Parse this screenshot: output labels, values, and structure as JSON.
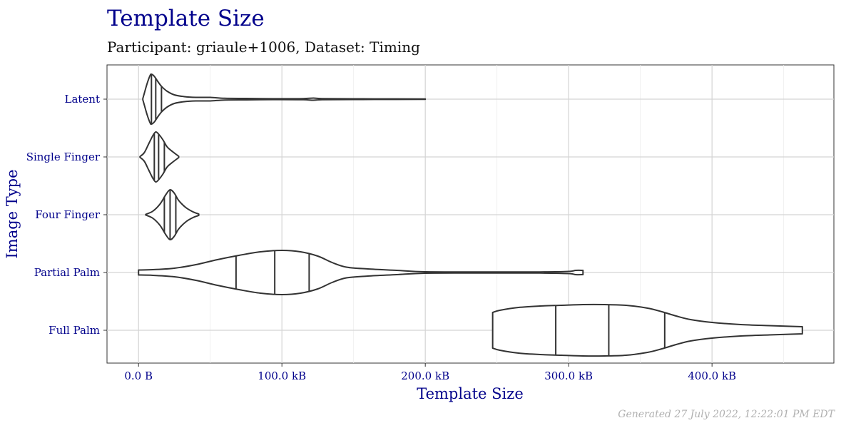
{
  "chart_data": {
    "type": "violin",
    "title": "Template Size",
    "subtitle": "Participant: griaule+1006, Dataset: Timing",
    "xlabel": "Template Size",
    "ylabel": "Image Type",
    "caption": "Generated 27 July 2022, 12:22:01 PM EDT",
    "xlim": [
      -22,
      485
    ],
    "grid": true,
    "x_ticks": [
      {
        "value": 0,
        "label": "0.0 B"
      },
      {
        "value": 100,
        "label": "100.0 kB"
      },
      {
        "value": 200,
        "label": "200.0 kB"
      },
      {
        "value": 300,
        "label": "300.0 kB"
      },
      {
        "value": 400,
        "label": "400.0 kB"
      }
    ],
    "categories": [
      "Latent",
      "Single Finger",
      "Four Finger",
      "Partial Palm",
      "Full Palm"
    ],
    "series": [
      {
        "category": "Latent",
        "quartiles": [
          9,
          12,
          16
        ],
        "profile": [
          [
            3,
            1
          ],
          [
            4,
            8
          ],
          [
            6,
            22
          ],
          [
            8,
            33
          ],
          [
            9,
            35
          ],
          [
            11,
            32
          ],
          [
            13,
            26
          ],
          [
            16,
            18
          ],
          [
            20,
            11
          ],
          [
            25,
            6
          ],
          [
            32,
            3.5
          ],
          [
            40,
            2.5
          ],
          [
            50,
            2.5
          ],
          [
            60,
            1.2
          ],
          [
            75,
            1.0
          ],
          [
            85,
            0.8
          ],
          [
            100,
            0.6
          ],
          [
            115,
            0.8
          ],
          [
            122,
            1.5
          ],
          [
            128,
            0.8
          ],
          [
            150,
            0.5
          ],
          [
            180,
            0.4
          ],
          [
            200,
            0.3
          ]
        ]
      },
      {
        "category": "Single Finger",
        "quartiles": [
          11,
          14,
          18
        ],
        "profile": [
          [
            1,
            0.5
          ],
          [
            4,
            6
          ],
          [
            7,
            18
          ],
          [
            10,
            30
          ],
          [
            12,
            35
          ],
          [
            14,
            32
          ],
          [
            17,
            24
          ],
          [
            20,
            14
          ],
          [
            24,
            7
          ],
          [
            28,
            1
          ]
        ]
      },
      {
        "category": "Four Finger",
        "quartiles": [
          18,
          22,
          26
        ],
        "profile": [
          [
            5,
            0.5
          ],
          [
            10,
            5
          ],
          [
            15,
            15
          ],
          [
            19,
            28
          ],
          [
            22,
            35
          ],
          [
            25,
            30
          ],
          [
            28,
            20
          ],
          [
            33,
            10
          ],
          [
            38,
            4
          ],
          [
            42,
            1
          ]
        ]
      },
      {
        "category": "Partial Palm",
        "quartiles": [
          68,
          95,
          119
        ],
        "profile": [
          [
            0,
            3.5
          ],
          [
            10,
            4
          ],
          [
            25,
            6
          ],
          [
            40,
            11
          ],
          [
            55,
            18
          ],
          [
            70,
            24
          ],
          [
            85,
            29
          ],
          [
            100,
            31
          ],
          [
            113,
            29
          ],
          [
            125,
            23
          ],
          [
            135,
            14
          ],
          [
            145,
            7.5
          ],
          [
            160,
            5
          ],
          [
            180,
            3
          ],
          [
            200,
            1
          ],
          [
            240,
            0.8
          ],
          [
            280,
            0.8
          ],
          [
            300,
            1.5
          ],
          [
            305,
            3
          ],
          [
            310,
            3
          ]
        ]
      },
      {
        "category": "Full Palm",
        "quartiles": [
          291,
          328,
          367
        ],
        "profile": [
          [
            247,
            25
          ],
          [
            252,
            28
          ],
          [
            265,
            32
          ],
          [
            280,
            34
          ],
          [
            295,
            35
          ],
          [
            310,
            36
          ],
          [
            325,
            36
          ],
          [
            340,
            35
          ],
          [
            355,
            31
          ],
          [
            365,
            26
          ],
          [
            375,
            20
          ],
          [
            385,
            15
          ],
          [
            400,
            11
          ],
          [
            420,
            8
          ],
          [
            440,
            6.5
          ],
          [
            455,
            5.5
          ],
          [
            463,
            5
          ]
        ]
      }
    ]
  }
}
